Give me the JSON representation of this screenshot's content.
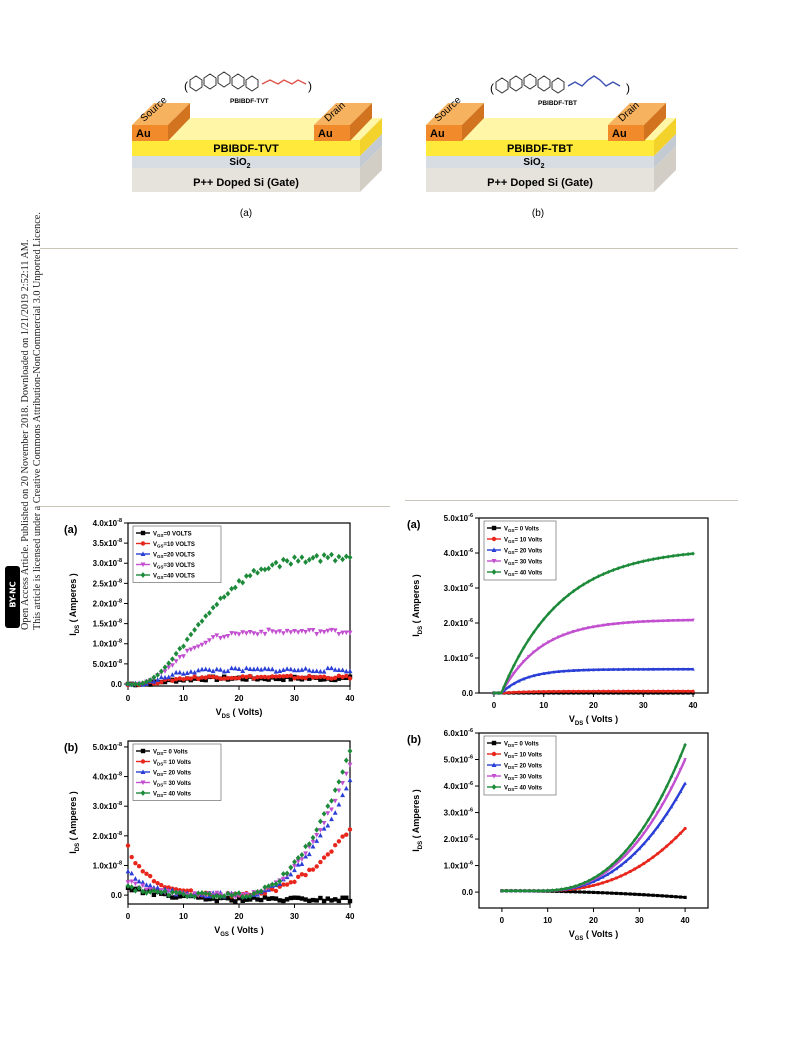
{
  "sidebar": {
    "line1": "Open Access Article. Published on 20 November 2018. Downloaded on 1/21/2019 2:52:11 AM.",
    "line2": "This article is licensed under a Creative Commons Attribution-NonCommercial 3.0 Unported Licence.",
    "badge": "BY-NC"
  },
  "schematics": [
    {
      "polymer": "PBIBDF-TVT",
      "source": "Source",
      "drain": "Drain",
      "au_left": "Au",
      "au_right": "Au",
      "layer": "PBIBDF-TVT",
      "oxide": "SiO",
      "oxide_sub": "2",
      "gate": "P++ Doped Si (Gate)",
      "label": "(a)",
      "accent": "#e0524a"
    },
    {
      "polymer": "PBIBDF-TBT",
      "source": "Source",
      "drain": "Drain",
      "au_left": "Au",
      "au_right": "Au",
      "layer": "PBIBDF-TBT",
      "oxide": "SiO",
      "oxide_sub": "2",
      "gate": "P++ Doped Si (Gate)",
      "label": "(b)",
      "accent": "#3a4fb0"
    }
  ],
  "chart_data": [
    {
      "id": "left-a",
      "type": "scatter",
      "panel_label": "(a)",
      "xlabel_main": "V",
      "xlabel_sub": "DS",
      "xlabel_rest": " ( Volts)",
      "ylabel_main": "I",
      "ylabel_sub": "DS",
      "ylabel_rest": " ( Amperes )",
      "xlim": [
        0,
        40
      ],
      "ylim": [
        -0.0,
        4e-08
      ],
      "xticks": [
        0,
        10,
        20,
        30,
        40
      ],
      "yticks": [
        {
          "v": 0.0,
          "l": "0.0"
        },
        {
          "v": 0.5,
          "l": "5.0x10"
        },
        {
          "v": 1.0,
          "l": "1.0x10"
        },
        {
          "v": 1.5,
          "l": "1.5x10"
        },
        {
          "v": 2.0,
          "l": "2.0x10"
        },
        {
          "v": 2.5,
          "l": "2.5x10"
        },
        {
          "v": 3.0,
          "l": "3.0x10"
        },
        {
          "v": 3.5,
          "l": "3.5x10"
        },
        {
          "v": 4.0,
          "l": "4.0x10"
        }
      ],
      "exp": "-8",
      "legend": [
        {
          "name": "V",
          "sub": "GS",
          "rest": "=0 VOLTS",
          "color": "#000000",
          "marker": "square"
        },
        {
          "name": "V",
          "sub": "GS",
          "rest": "=10 VOLTS",
          "color": "#e8261c",
          "marker": "circle"
        },
        {
          "name": "V",
          "sub": "GS",
          "rest": "=20 VOLTS",
          "color": "#2a3fd6",
          "marker": "triangle"
        },
        {
          "name": "V",
          "sub": "GS",
          "rest": "=30 VOLTS",
          "color": "#c24fd0",
          "marker": "tridown"
        },
        {
          "name": "V",
          "sub": "GS",
          "rest": "=40 VOLTS",
          "color": "#1d8a3a",
          "marker": "diamond"
        }
      ],
      "series": [
        {
          "plateau": 0.14,
          "rise": 6,
          "noise": 0.12
        },
        {
          "plateau": 0.17,
          "rise": 6,
          "noise": 0.1
        },
        {
          "plateau": 0.35,
          "rise": 6,
          "noise": 0.1
        },
        {
          "plateau": 1.3,
          "rise": 9,
          "noise": 0.06
        },
        {
          "plateau": 3.17,
          "rise": 14,
          "noise": 0.05
        }
      ]
    },
    {
      "id": "left-b",
      "type": "scatter",
      "panel_label": "(b)",
      "xlabel_main": "V",
      "xlabel_sub": "GS",
      "xlabel_rest": " ( Volts )",
      "ylabel_main": "I",
      "ylabel_sub": "DS",
      "ylabel_rest": " ( Amperes )",
      "xlim": [
        0,
        40
      ],
      "ylim": [
        -0.3,
        5.2
      ],
      "xticks": [
        0,
        10,
        20,
        30,
        40
      ],
      "yticks": [
        {
          "v": 0.0,
          "l": "0.0"
        },
        {
          "v": 1.0,
          "l": "1.0x10"
        },
        {
          "v": 2.0,
          "l": "2.0x10"
        },
        {
          "v": 3.0,
          "l": "3.0x10"
        },
        {
          "v": 4.0,
          "l": "4.0x10"
        },
        {
          "v": 5.0,
          "l": "5.0x10"
        }
      ],
      "exp": "-8",
      "legend": [
        {
          "name": "V",
          "sub": "DS",
          "rest": "= 0 Volts",
          "color": "#000000",
          "marker": "square"
        },
        {
          "name": "V",
          "sub": "DS",
          "rest": "= 10 Volts",
          "color": "#e8261c",
          "marker": "circle"
        },
        {
          "name": "V",
          "sub": "DS",
          "rest": "= 20 Volts",
          "color": "#2a3fd6",
          "marker": "triangle"
        },
        {
          "name": "V",
          "sub": "DS",
          "rest": "= 30 Volts",
          "color": "#c24fd0",
          "marker": "tridown"
        },
        {
          "name": "V",
          "sub": "DS",
          "rest": "= 40 Volts",
          "color": "#1d8a3a",
          "marker": "diamond"
        }
      ],
      "series": [
        {
          "end": 0.0,
          "start": 0.3
        },
        {
          "end": 2.25,
          "start": 1.6
        },
        {
          "end": 3.9,
          "start": 0.8
        },
        {
          "end": 4.4,
          "start": 0.5
        },
        {
          "end": 4.85,
          "start": 0.3
        }
      ]
    },
    {
      "id": "right-a",
      "type": "line",
      "panel_label": "(a)",
      "xlabel_main": "V",
      "xlabel_sub": "DS",
      "xlabel_rest": " ( Volts )",
      "ylabel_main": "I",
      "ylabel_sub": "DS",
      "ylabel_rest": " ( Amperes )",
      "xlim": [
        -3,
        43
      ],
      "ylim": [
        0,
        5.0
      ],
      "xticks": [
        0,
        10,
        20,
        30,
        40
      ],
      "yticks": [
        {
          "v": 0.0,
          "l": "0.0"
        },
        {
          "v": 1.0,
          "l": "1.0x10"
        },
        {
          "v": 2.0,
          "l": "2.0x10"
        },
        {
          "v": 3.0,
          "l": "3.0x10"
        },
        {
          "v": 4.0,
          "l": "4.0x10"
        },
        {
          "v": 5.0,
          "l": "5.0x10"
        }
      ],
      "exp": "-6",
      "legend": [
        {
          "name": "V",
          "sub": "GS",
          "rest": "= 0 Volts",
          "color": "#000000",
          "marker": "square"
        },
        {
          "name": "V",
          "sub": "GS",
          "rest": "= 10 Volts",
          "color": "#e8261c",
          "marker": "circle"
        },
        {
          "name": "V",
          "sub": "GS",
          "rest": "= 20 Volts",
          "color": "#2a3fd6",
          "marker": "triangle"
        },
        {
          "name": "V",
          "sub": "GS",
          "rest": "= 30 Volts",
          "color": "#c24fd0",
          "marker": "tridown"
        },
        {
          "name": "V",
          "sub": "GS",
          "rest": "= 40 Volts",
          "color": "#1d8a3a",
          "marker": "diamond"
        }
      ],
      "series": [
        {
          "plateau": 0.0
        },
        {
          "plateau": 0.05
        },
        {
          "plateau": 0.68
        },
        {
          "plateau": 2.1
        },
        {
          "plateau": 4.15
        }
      ]
    },
    {
      "id": "right-b",
      "type": "line",
      "panel_label": "(b)",
      "xlabel_main": "V",
      "xlabel_sub": "GS",
      "xlabel_rest": " ( Volts )",
      "ylabel_main": "I",
      "ylabel_sub": "DS",
      "ylabel_rest": " ( Amperes )",
      "xlim": [
        -5,
        45
      ],
      "ylim": [
        -0.5,
        6.0
      ],
      "xticks": [
        0,
        10,
        20,
        30,
        40
      ],
      "yticks": [
        {
          "v": 0.0,
          "l": "0.0"
        },
        {
          "v": 1.0,
          "l": "1.0x10"
        },
        {
          "v": 2.0,
          "l": "2.0x10"
        },
        {
          "v": 3.0,
          "l": "3.0x10"
        },
        {
          "v": 4.0,
          "l": "4.0x10"
        },
        {
          "v": 5.0,
          "l": "5.0x10"
        },
        {
          "v": 6.0,
          "l": "6.0x10"
        }
      ],
      "exp": "-6",
      "legend": [
        {
          "name": "V",
          "sub": "DS",
          "rest": "= 0 Volts",
          "color": "#000000",
          "marker": "square"
        },
        {
          "name": "V",
          "sub": "DS",
          "rest": "= 10 Volts",
          "color": "#e8261c",
          "marker": "circle"
        },
        {
          "name": "V",
          "sub": "DS",
          "rest": "= 20 Volts",
          "color": "#2a3fd6",
          "marker": "triangle"
        },
        {
          "name": "V",
          "sub": "DS",
          "rest": "= 30 Volts",
          "color": "#c24fd0",
          "marker": "tridown"
        },
        {
          "name": "V",
          "sub": "DS",
          "rest": "= 40 Volts",
          "color": "#1d8a3a",
          "marker": "diamond"
        }
      ],
      "series": [
        {
          "end": -0.2
        },
        {
          "end": 2.35
        },
        {
          "end": 4.05
        },
        {
          "end": 4.95
        },
        {
          "end": 5.5
        }
      ]
    }
  ]
}
